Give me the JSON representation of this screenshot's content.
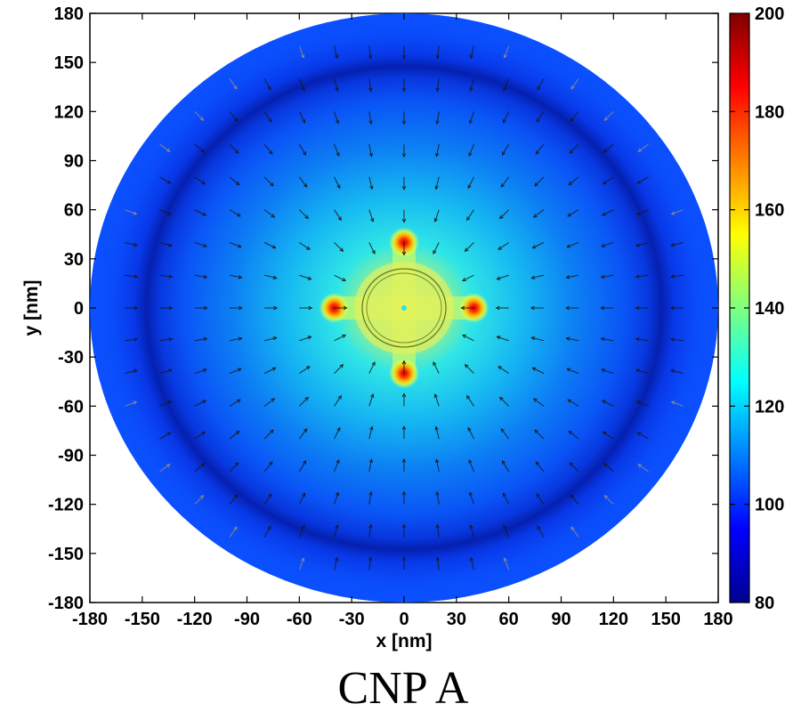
{
  "chart_data": {
    "type": "heatmap",
    "title": "",
    "caption": "CNP A",
    "xlabel": "x [nm]",
    "ylabel": "y [nm]",
    "xlim": [
      -180,
      180
    ],
    "ylim": [
      -180,
      180
    ],
    "xticks": [
      -180,
      -150,
      -120,
      -90,
      -60,
      -30,
      0,
      30,
      60,
      90,
      120,
      150,
      180
    ],
    "yticks": [
      180,
      150,
      120,
      90,
      60,
      30,
      0,
      -30,
      -60,
      -90,
      -120,
      -150,
      -180
    ],
    "grid": false,
    "colorbar": {
      "min": 80,
      "max": 200,
      "ticks": [
        200,
        180,
        160,
        140,
        120,
        100,
        80
      ],
      "colormap": [
        "#00008f",
        "#0000ff",
        "#00ffff",
        "#ffff00",
        "#ff0000",
        "#800000"
      ]
    },
    "domain_radius_nm": 180,
    "dark_ring_radius_nm": 148,
    "inner_circle_radius_nm": 24,
    "center_value": 140,
    "hotspots": [
      {
        "x": 0,
        "y": 40,
        "value": 185
      },
      {
        "x": 40,
        "y": 0,
        "value": 185
      },
      {
        "x": 0,
        "y": -40,
        "value": 185
      },
      {
        "x": -40,
        "y": 0,
        "value": 185
      }
    ],
    "vector_field": "quiver, arrows pointing radially toward the center"
  }
}
